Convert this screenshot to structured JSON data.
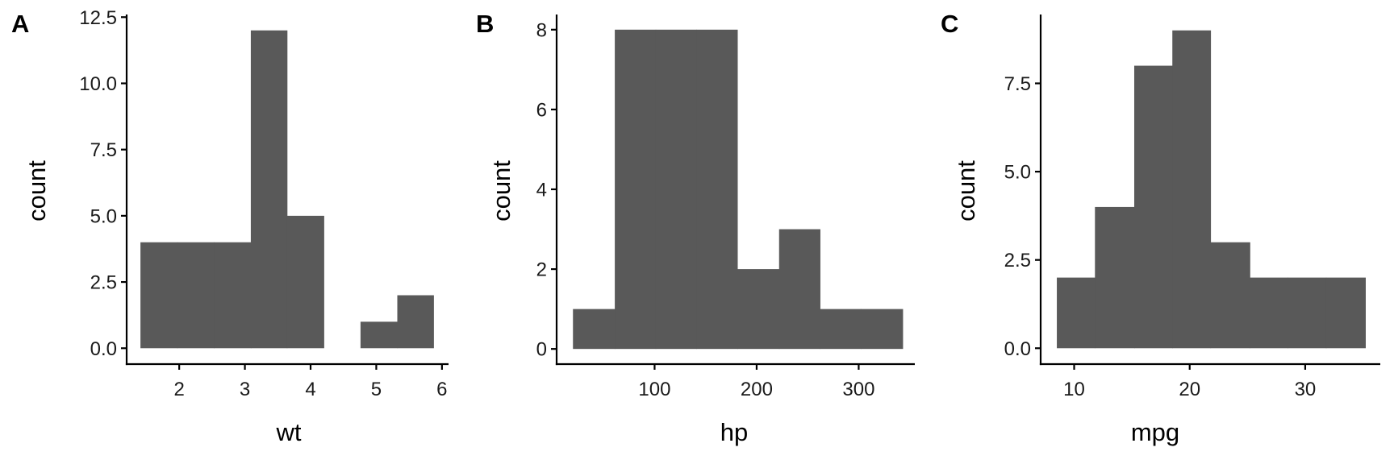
{
  "colors": {
    "bar": "#595959",
    "axis": "#000000",
    "text": "#1a1a1a",
    "background": "#ffffff"
  },
  "chart_data": [
    {
      "type": "bar",
      "tag": "A",
      "xlabel": "wt",
      "ylabel": "count",
      "xlim": [
        1.2,
        6.1
      ],
      "ylim": [
        -0.6,
        12.6
      ],
      "xticks": [
        2,
        3,
        4,
        5,
        6
      ],
      "xtick_labels": [
        "2",
        "3",
        "4",
        "5",
        "6"
      ],
      "yticks": [
        0,
        2.5,
        5,
        7.5,
        10,
        12.5
      ],
      "ytick_labels": [
        "0.0",
        "2.5",
        "5.0",
        "7.5",
        "10.0",
        "12.5"
      ],
      "bins": [
        {
          "x0": 1.41,
          "x1": 1.97,
          "count": 4
        },
        {
          "x0": 1.97,
          "x1": 2.53,
          "count": 4
        },
        {
          "x0": 2.53,
          "x1": 3.09,
          "count": 4
        },
        {
          "x0": 3.09,
          "x1": 3.64,
          "count": 12
        },
        {
          "x0": 3.64,
          "x1": 4.2,
          "count": 5
        },
        {
          "x0": 4.2,
          "x1": 4.76,
          "count": 0
        },
        {
          "x0": 4.76,
          "x1": 5.32,
          "count": 1
        },
        {
          "x0": 5.32,
          "x1": 5.87,
          "count": 2
        }
      ]
    },
    {
      "type": "bar",
      "tag": "B",
      "xlabel": "hp",
      "ylabel": "count",
      "xlim": [
        4,
        355
      ],
      "ylim": [
        -0.38,
        8.38
      ],
      "xticks": [
        100,
        200,
        300
      ],
      "xtick_labels": [
        "100",
        "200",
        "300"
      ],
      "yticks": [
        0,
        2,
        4,
        6,
        8
      ],
      "ytick_labels": [
        "0",
        "2",
        "4",
        "6",
        "8"
      ],
      "bins": [
        {
          "x0": 20,
          "x1": 61,
          "count": 1
        },
        {
          "x0": 61,
          "x1": 101,
          "count": 8
        },
        {
          "x0": 101,
          "x1": 141,
          "count": 8
        },
        {
          "x0": 141,
          "x1": 181,
          "count": 8
        },
        {
          "x0": 181,
          "x1": 222,
          "count": 2
        },
        {
          "x0": 222,
          "x1": 262,
          "count": 3
        },
        {
          "x0": 262,
          "x1": 302,
          "count": 1
        },
        {
          "x0": 302,
          "x1": 343,
          "count": 1
        }
      ]
    },
    {
      "type": "bar",
      "tag": "C",
      "xlabel": "mpg",
      "ylabel": "count",
      "xlim": [
        7.1,
        36.5
      ],
      "ylim": [
        -0.45,
        9.45
      ],
      "xticks": [
        10,
        20,
        30
      ],
      "xtick_labels": [
        "10",
        "20",
        "30"
      ],
      "yticks": [
        0,
        2.5,
        5,
        7.5
      ],
      "ytick_labels": [
        "0.0",
        "2.5",
        "5.0",
        "7.5"
      ],
      "bins": [
        {
          "x0": 8.5,
          "x1": 11.8,
          "count": 2
        },
        {
          "x0": 11.8,
          "x1": 15.2,
          "count": 4
        },
        {
          "x0": 15.2,
          "x1": 18.5,
          "count": 8
        },
        {
          "x0": 18.5,
          "x1": 21.8,
          "count": 9
        },
        {
          "x0": 21.8,
          "x1": 25.2,
          "count": 3
        },
        {
          "x0": 25.2,
          "x1": 28.5,
          "count": 2
        },
        {
          "x0": 28.5,
          "x1": 31.8,
          "count": 2
        },
        {
          "x0": 31.8,
          "x1": 35.2,
          "count": 2
        }
      ]
    }
  ]
}
